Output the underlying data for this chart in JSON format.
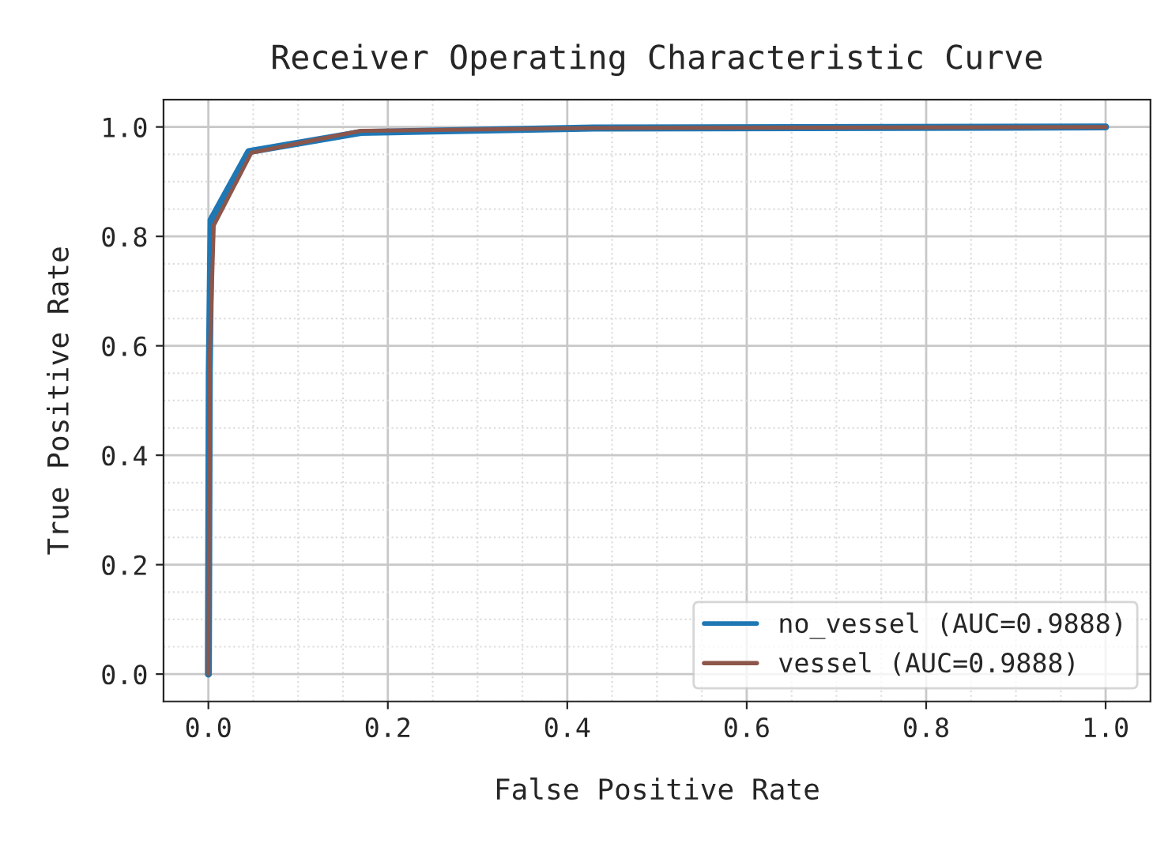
{
  "chart_data": {
    "type": "line",
    "title": "Receiver Operating Characteristic Curve",
    "xlabel": "False Positive Rate",
    "ylabel": "True Positive Rate",
    "xlim": [
      -0.05,
      1.05
    ],
    "ylim": [
      -0.05,
      1.05
    ],
    "xticks": [
      {
        "value": 0,
        "label": "0.0"
      },
      {
        "value": 0.2,
        "label": "0.2"
      },
      {
        "value": 0.4,
        "label": "0.4"
      },
      {
        "value": 0.6,
        "label": "0.6"
      },
      {
        "value": 0.8,
        "label": "0.8"
      },
      {
        "value": 1,
        "label": "1.0"
      }
    ],
    "yticks": [
      {
        "value": 0,
        "label": "0.0"
      },
      {
        "value": 0.2,
        "label": "0.2"
      },
      {
        "value": 0.4,
        "label": "0.4"
      },
      {
        "value": 0.6,
        "label": "0.6"
      },
      {
        "value": 0.8,
        "label": "0.8"
      },
      {
        "value": 1,
        "label": "1.0"
      }
    ],
    "grid": true,
    "legend": "bottom right",
    "line_style": "solid",
    "marker": "none",
    "series": [
      {
        "name": "no_vessel (AUC=0.9888)",
        "color": "#1f77b4",
        "x": [
          0,
          0.001,
          0.003,
          0.045,
          0.17,
          0.43,
          1
        ],
        "values": [
          0,
          0.55,
          0.83,
          0.955,
          0.99,
          0.998,
          1
        ]
      },
      {
        "name": "vessel (AUC=0.9888)",
        "color": "#8c564b",
        "x": [
          0,
          0.001,
          0.006,
          0.048,
          0.17,
          0.43,
          1
        ],
        "values": [
          0,
          0.55,
          0.82,
          0.953,
          0.993,
          0.998,
          1
        ]
      }
    ]
  }
}
